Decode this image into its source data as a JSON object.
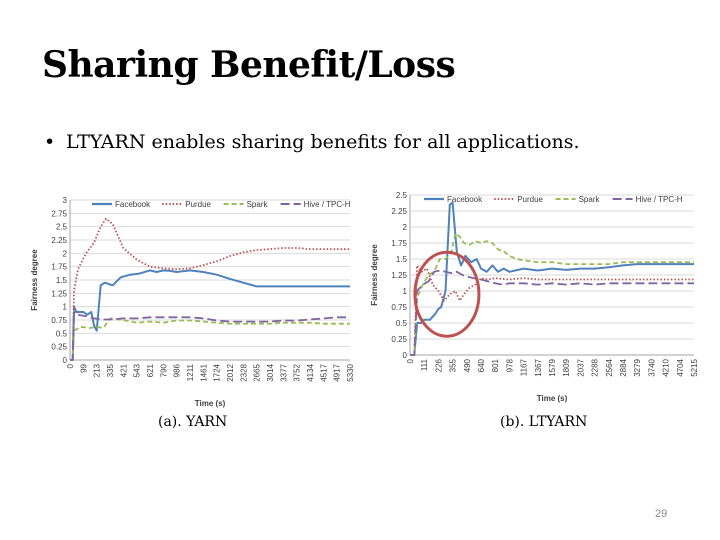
{
  "slide": {
    "title": "Sharing Benefit/Loss",
    "bullet": "LTYARN enables sharing benefits for all applications.",
    "bullet_marker": "•",
    "caption_a": "(a). YARN",
    "caption_b": "(b). LTYARN",
    "page_number": "29"
  },
  "colors": {
    "facebook": "#4f81bd",
    "purdue": "#c0504d",
    "spark": "#9bbb59",
    "hive": "#8064a2",
    "highlight_circle": "#c0504d"
  },
  "chart_data": [
    {
      "type": "line",
      "ylabel": "Fairness degree",
      "xlabel": "Time (s)",
      "ylim": [
        0,
        3
      ],
      "yticks": [
        "0",
        "0.25",
        "0.5",
        "0.75",
        "1",
        "1.25",
        "1.5",
        "1.75",
        "2",
        "2.25",
        "2.5",
        "2.75",
        "3"
      ],
      "x": [
        "0",
        "99",
        "213",
        "335",
        "421",
        "543",
        "621",
        "790",
        "986",
        "1211",
        "1461",
        "1724",
        "2012",
        "2328",
        "2665",
        "3014",
        "3377",
        "3752",
        "4134",
        "4517",
        "4917",
        "5330"
      ],
      "grid": true,
      "legend": "top",
      "series": [
        {
          "name": "Facebook",
          "key": "facebook",
          "style": "solid",
          "points": [
            [
              0,
              0
            ],
            [
              0.2,
              0
            ],
            [
              0.3,
              0.9
            ],
            [
              0.6,
              0.9
            ],
            [
              1.0,
              0.9
            ],
            [
              1.3,
              0.85
            ],
            [
              1.6,
              0.9
            ],
            [
              1.8,
              0.65
            ],
            [
              2.0,
              0.55
            ],
            [
              2.3,
              1.4
            ],
            [
              2.6,
              1.45
            ],
            [
              3.2,
              1.4
            ],
            [
              3.8,
              1.55
            ],
            [
              4.5,
              1.6
            ],
            [
              5.2,
              1.62
            ],
            [
              6,
              1.68
            ],
            [
              6.5,
              1.65
            ],
            [
              7,
              1.68
            ],
            [
              7.5,
              1.67
            ],
            [
              8,
              1.65
            ],
            [
              9,
              1.68
            ],
            [
              10,
              1.65
            ],
            [
              11,
              1.6
            ],
            [
              12,
              1.52
            ],
            [
              13,
              1.45
            ],
            [
              14,
              1.38
            ],
            [
              15,
              1.38
            ],
            [
              16,
              1.38
            ],
            [
              17,
              1.38
            ],
            [
              18,
              1.38
            ],
            [
              19,
              1.38
            ],
            [
              20,
              1.38
            ],
            [
              21,
              1.38
            ]
          ]
        },
        {
          "name": "Purdue",
          "key": "purdue",
          "style": "dotted",
          "points": [
            [
              0,
              0
            ],
            [
              0.2,
              0
            ],
            [
              0.3,
              1.3
            ],
            [
              0.6,
              1.7
            ],
            [
              1.2,
              2.0
            ],
            [
              1.8,
              2.2
            ],
            [
              2.3,
              2.5
            ],
            [
              2.7,
              2.65
            ],
            [
              3.2,
              2.55
            ],
            [
              4.0,
              2.1
            ],
            [
              5.0,
              1.88
            ],
            [
              6.0,
              1.75
            ],
            [
              7,
              1.72
            ],
            [
              8,
              1.7
            ],
            [
              9,
              1.72
            ],
            [
              10,
              1.78
            ],
            [
              11,
              1.85
            ],
            [
              12,
              1.95
            ],
            [
              13,
              2.02
            ],
            [
              14,
              2.06
            ],
            [
              15,
              2.08
            ],
            [
              16,
              2.1
            ],
            [
              17,
              2.1
            ],
            [
              18,
              2.08
            ],
            [
              19,
              2.08
            ],
            [
              20,
              2.08
            ],
            [
              21,
              2.08
            ]
          ]
        },
        {
          "name": "Spark",
          "key": "spark",
          "style": "dashed",
          "points": [
            [
              0,
              0
            ],
            [
              0.2,
              0
            ],
            [
              0.3,
              0.55
            ],
            [
              0.8,
              0.62
            ],
            [
              1.5,
              0.6
            ],
            [
              2.0,
              0.62
            ],
            [
              2.5,
              0.6
            ],
            [
              3,
              0.78
            ],
            [
              4,
              0.75
            ],
            [
              5,
              0.7
            ],
            [
              6,
              0.72
            ],
            [
              7,
              0.7
            ],
            [
              8,
              0.74
            ],
            [
              9,
              0.74
            ],
            [
              10,
              0.72
            ],
            [
              11,
              0.7
            ],
            [
              12,
              0.68
            ],
            [
              13,
              0.68
            ],
            [
              14,
              0.68
            ],
            [
              15,
              0.68
            ],
            [
              16,
              0.7
            ],
            [
              17,
              0.7
            ],
            [
              18,
              0.7
            ],
            [
              19,
              0.68
            ],
            [
              20,
              0.68
            ],
            [
              21,
              0.68
            ]
          ]
        },
        {
          "name": "Hive / TPC-H",
          "key": "hive",
          "style": "longdash",
          "points": [
            [
              0,
              0
            ],
            [
              0.2,
              0
            ],
            [
              0.3,
              1.0
            ],
            [
              0.6,
              0.85
            ],
            [
              1.2,
              0.82
            ],
            [
              1.8,
              0.78
            ],
            [
              2.5,
              0.76
            ],
            [
              3,
              0.76
            ],
            [
              4,
              0.78
            ],
            [
              5,
              0.78
            ],
            [
              6,
              0.8
            ],
            [
              7,
              0.8
            ],
            [
              8,
              0.8
            ],
            [
              9,
              0.8
            ],
            [
              10,
              0.78
            ],
            [
              11,
              0.74
            ],
            [
              12,
              0.72
            ],
            [
              13,
              0.72
            ],
            [
              14,
              0.72
            ],
            [
              15,
              0.72
            ],
            [
              16,
              0.74
            ],
            [
              17,
              0.74
            ],
            [
              18,
              0.76
            ],
            [
              19,
              0.78
            ],
            [
              20,
              0.8
            ],
            [
              21,
              0.8
            ]
          ]
        }
      ]
    },
    {
      "type": "line",
      "ylabel": "Fairness degree",
      "xlabel": "Time (s)",
      "ylim": [
        0,
        2.5
      ],
      "yticks": [
        "0",
        "0.25",
        "0.5",
        "0.75",
        "1",
        "1.25",
        "1.5",
        "1.75",
        "2",
        "2.25",
        "2.5"
      ],
      "x": [
        "0",
        "111",
        "226",
        "355",
        "490",
        "640",
        "801",
        "978",
        "1167",
        "1367",
        "1579",
        "1809",
        "2037",
        "2288",
        "2564",
        "2884",
        "3279",
        "3740",
        "4210",
        "4704",
        "5215"
      ],
      "grid": true,
      "legend": "top",
      "annotation": "circle around early-time region",
      "series": [
        {
          "name": "Facebook",
          "key": "facebook",
          "style": "solid",
          "points": [
            [
              0,
              0
            ],
            [
              0.3,
              0
            ],
            [
              0.5,
              0.5
            ],
            [
              0.8,
              0.5
            ],
            [
              1.0,
              0.55
            ],
            [
              1.4,
              0.55
            ],
            [
              1.8,
              0.65
            ],
            [
              2.0,
              0.72
            ],
            [
              2.2,
              0.75
            ],
            [
              2.5,
              1.0
            ],
            [
              2.8,
              2.35
            ],
            [
              3.0,
              2.38
            ],
            [
              3.3,
              1.6
            ],
            [
              3.6,
              1.4
            ],
            [
              3.9,
              1.55
            ],
            [
              4.3,
              1.45
            ],
            [
              4.7,
              1.5
            ],
            [
              5.0,
              1.35
            ],
            [
              5.4,
              1.3
            ],
            [
              5.8,
              1.4
            ],
            [
              6.2,
              1.3
            ],
            [
              6.6,
              1.35
            ],
            [
              7,
              1.3
            ],
            [
              8,
              1.35
            ],
            [
              9,
              1.32
            ],
            [
              10,
              1.35
            ],
            [
              11,
              1.33
            ],
            [
              12,
              1.35
            ],
            [
              13,
              1.35
            ],
            [
              14,
              1.37
            ],
            [
              15,
              1.4
            ],
            [
              16,
              1.42
            ],
            [
              17,
              1.42
            ],
            [
              18,
              1.42
            ],
            [
              19,
              1.42
            ],
            [
              20,
              1.42
            ]
          ]
        },
        {
          "name": "Purdue",
          "key": "purdue",
          "style": "dotted",
          "points": [
            [
              0,
              0
            ],
            [
              0.3,
              0
            ],
            [
              0.5,
              1.4
            ],
            [
              0.8,
              1.3
            ],
            [
              1.2,
              1.35
            ],
            [
              1.6,
              1.1
            ],
            [
              2.0,
              1.0
            ],
            [
              2.4,
              0.85
            ],
            [
              2.8,
              0.95
            ],
            [
              3.2,
              1.0
            ],
            [
              3.5,
              0.85
            ],
            [
              3.8,
              0.95
            ],
            [
              4.2,
              1.05
            ],
            [
              4.6,
              1.1
            ],
            [
              5,
              1.2
            ],
            [
              5.5,
              1.18
            ],
            [
              6,
              1.2
            ],
            [
              7,
              1.18
            ],
            [
              8,
              1.2
            ],
            [
              9,
              1.18
            ],
            [
              10,
              1.18
            ],
            [
              11,
              1.18
            ],
            [
              12,
              1.18
            ],
            [
              13,
              1.18
            ],
            [
              14,
              1.18
            ],
            [
              15,
              1.18
            ],
            [
              16,
              1.18
            ],
            [
              17,
              1.18
            ],
            [
              18,
              1.18
            ],
            [
              19,
              1.18
            ],
            [
              20,
              1.18
            ]
          ]
        },
        {
          "name": "Spark",
          "key": "spark",
          "style": "dashed",
          "points": [
            [
              0,
              0
            ],
            [
              0.3,
              0
            ],
            [
              0.5,
              0.9
            ],
            [
              0.9,
              1.1
            ],
            [
              1.3,
              1.25
            ],
            [
              1.7,
              1.3
            ],
            [
              2.1,
              1.5
            ],
            [
              2.5,
              1.5
            ],
            [
              2.9,
              1.6
            ],
            [
              3.2,
              1.9
            ],
            [
              3.5,
              1.85
            ],
            [
              3.8,
              1.75
            ],
            [
              4.2,
              1.72
            ],
            [
              4.6,
              1.78
            ],
            [
              5.0,
              1.75
            ],
            [
              5.4,
              1.78
            ],
            [
              5.8,
              1.75
            ],
            [
              6.2,
              1.65
            ],
            [
              6.6,
              1.62
            ],
            [
              7,
              1.55
            ],
            [
              7.5,
              1.5
            ],
            [
              8,
              1.48
            ],
            [
              9,
              1.45
            ],
            [
              10,
              1.45
            ],
            [
              11,
              1.42
            ],
            [
              12,
              1.42
            ],
            [
              13,
              1.42
            ],
            [
              14,
              1.42
            ],
            [
              15,
              1.45
            ],
            [
              16,
              1.45
            ],
            [
              17,
              1.45
            ],
            [
              18,
              1.45
            ],
            [
              19,
              1.45
            ],
            [
              20,
              1.45
            ]
          ]
        },
        {
          "name": "Hive / TPC-H",
          "key": "hive",
          "style": "longdash",
          "points": [
            [
              0,
              0
            ],
            [
              0.3,
              0
            ],
            [
              0.5,
              1.0
            ],
            [
              0.9,
              1.1
            ],
            [
              1.3,
              1.15
            ],
            [
              1.7,
              1.3
            ],
            [
              2.1,
              1.32
            ],
            [
              2.5,
              1.3
            ],
            [
              2.9,
              1.28
            ],
            [
              3.3,
              1.3
            ],
            [
              3.7,
              1.25
            ],
            [
              4.1,
              1.22
            ],
            [
              4.5,
              1.2
            ],
            [
              5,
              1.18
            ],
            [
              5.5,
              1.15
            ],
            [
              6,
              1.12
            ],
            [
              6.5,
              1.1
            ],
            [
              7,
              1.12
            ],
            [
              8,
              1.12
            ],
            [
              9,
              1.1
            ],
            [
              10,
              1.12
            ],
            [
              11,
              1.1
            ],
            [
              12,
              1.12
            ],
            [
              13,
              1.1
            ],
            [
              14,
              1.12
            ],
            [
              15,
              1.12
            ],
            [
              16,
              1.12
            ],
            [
              17,
              1.12
            ],
            [
              18,
              1.12
            ],
            [
              19,
              1.12
            ],
            [
              20,
              1.12
            ]
          ]
        }
      ]
    }
  ]
}
